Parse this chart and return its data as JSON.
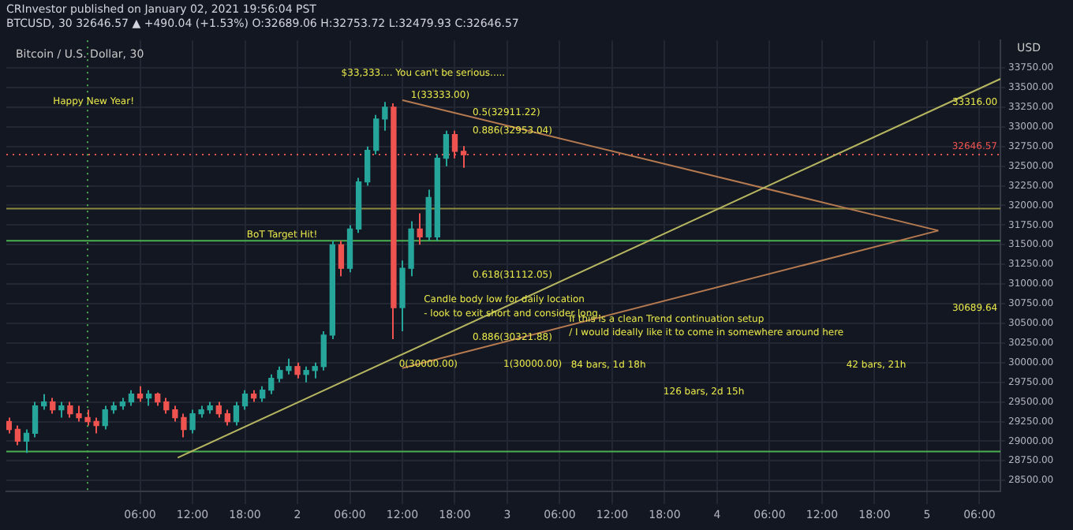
{
  "chart_data": {
    "type": "candlestick",
    "title": "Bitcoin / U.S. Dollar, 30",
    "subtitle": "CRInvestor published on January 02, 2021 19:56:04 PST",
    "annotations": [
      "BTCUSD, 30 32646.57 ▲ +490.04 (+1.53%) O:32689.06 H:32753.72 L:32479.93 C:32646.57",
      "Happy New Year!",
      "$33,333.... You can't be serious.....",
      "BoT Target Hit!",
      "1(33333.00)",
      "0.886(32953.04)",
      "0.5(32911.22)",
      "0.618(31112.05)",
      "Candle body low for daily location",
      "- look to exit short and consider long.",
      "0.886(30321.88)",
      "0(30000.00)",
      "1(30000.00)",
      "If this is a clean Trend continuation setup",
      "/ I would ideally like it to come in somewhere around here",
      "84 bars, 1d 18h",
      "126 bars, 2d 15h",
      "42 bars, 21h",
      "33316.00",
      "30689.64"
    ],
    "x": [
      "2020-12-31T15:00",
      "2020-12-31T16:00",
      "2020-12-31T17:00",
      "2020-12-31T18:00",
      "2020-12-31T19:00",
      "2020-12-31T20:00",
      "2020-12-31T21:00",
      "2020-12-31T22:00",
      "2020-12-31T23:00",
      "2021-01-01T00:00",
      "2021-01-01T01:00",
      "2021-01-01T02:00",
      "2021-01-01T03:00",
      "2021-01-01T04:00",
      "2021-01-01T05:00",
      "2021-01-01T06:00",
      "2021-01-01T07:00",
      "2021-01-01T08:00",
      "2021-01-01T09:00",
      "2021-01-01T10:00",
      "2021-01-01T11:00",
      "2021-01-01T12:00",
      "2021-01-01T13:00",
      "2021-01-01T14:00",
      "2021-01-01T15:00",
      "2021-01-01T16:00",
      "2021-01-01T17:00",
      "2021-01-01T18:00",
      "2021-01-01T19:00",
      "2021-01-01T20:00",
      "2021-01-01T21:00",
      "2021-01-01T22:00",
      "2021-01-01T23:00",
      "2021-01-02T00:00",
      "2021-01-02T01:00",
      "2021-01-02T02:00",
      "2021-01-02T03:00",
      "2021-01-02T04:00",
      "2021-01-02T05:00",
      "2021-01-02T06:00",
      "2021-01-02T07:00",
      "2021-01-02T08:00",
      "2021-01-02T09:00",
      "2021-01-02T10:00",
      "2021-01-02T11:00",
      "2021-01-02T12:00",
      "2021-01-02T13:00",
      "2021-01-02T14:00",
      "2021-01-02T15:00",
      "2021-01-02T16:00",
      "2021-01-02T17:00",
      "2021-01-02T18:00",
      "2021-01-02T19:00"
    ],
    "ohlc": [
      [
        29250,
        29300,
        29100,
        29150
      ],
      [
        29150,
        29200,
        28950,
        29000
      ],
      [
        29000,
        29150,
        28850,
        29100
      ],
      [
        29100,
        29500,
        29050,
        29450
      ],
      [
        29450,
        29600,
        29400,
        29500
      ],
      [
        29500,
        29550,
        29350,
        29400
      ],
      [
        29400,
        29500,
        29300,
        29450
      ],
      [
        29450,
        29500,
        29300,
        29350
      ],
      [
        29350,
        29450,
        29250,
        29300
      ],
      [
        29300,
        29400,
        29200,
        29250
      ],
      [
        29250,
        29300,
        29100,
        29200
      ],
      [
        29200,
        29450,
        29150,
        29400
      ],
      [
        29400,
        29500,
        29350,
        29450
      ],
      [
        29450,
        29550,
        29400,
        29500
      ],
      [
        29500,
        29650,
        29450,
        29600
      ],
      [
        29600,
        29700,
        29500,
        29550
      ],
      [
        29550,
        29650,
        29450,
        29600
      ],
      [
        29600,
        29620,
        29450,
        29500
      ],
      [
        29500,
        29550,
        29350,
        29400
      ],
      [
        29400,
        29450,
        29250,
        29300
      ],
      [
        29300,
        29350,
        29050,
        29150
      ],
      [
        29150,
        29400,
        29100,
        29350
      ],
      [
        29350,
        29450,
        29300,
        29400
      ],
      [
        29400,
        29500,
        29350,
        29450
      ],
      [
        29450,
        29500,
        29300,
        29350
      ],
      [
        29350,
        29400,
        29200,
        29250
      ],
      [
        29250,
        29500,
        29200,
        29450
      ],
      [
        29450,
        29650,
        29400,
        29600
      ],
      [
        29600,
        29650,
        29500,
        29550
      ],
      [
        29550,
        29700,
        29500,
        29650
      ],
      [
        29650,
        29850,
        29600,
        29800
      ],
      [
        29800,
        29950,
        29750,
        29900
      ],
      [
        29900,
        30050,
        29850,
        29950
      ],
      [
        29950,
        30000,
        29800,
        29850
      ],
      [
        29850,
        29950,
        29750,
        29900
      ],
      [
        29900,
        30000,
        29800,
        29950
      ],
      [
        29950,
        30400,
        29900,
        30350
      ],
      [
        30350,
        31550,
        30300,
        31500
      ],
      [
        31500,
        31550,
        31100,
        31200
      ],
      [
        31200,
        31750,
        31150,
        31700
      ],
      [
        31700,
        32350,
        31650,
        32300
      ],
      [
        32300,
        32750,
        32250,
        32700
      ],
      [
        32700,
        33150,
        32650,
        33100
      ],
      [
        33100,
        33316,
        32950,
        33250
      ],
      [
        33250,
        33300,
        30300,
        30700
      ],
      [
        30700,
        31300,
        30400,
        31200
      ],
      [
        31200,
        31800,
        31100,
        31700
      ],
      [
        31700,
        31900,
        31500,
        31600
      ],
      [
        31600,
        32200,
        31550,
        32100
      ],
      [
        31600,
        32650,
        31550,
        32600
      ],
      [
        32600,
        32950,
        32500,
        32900
      ],
      [
        32900,
        32950,
        32600,
        32689.06
      ],
      [
        32689.06,
        32753.72,
        32479.93,
        32646.57
      ]
    ],
    "series": [
      {
        "type": "line",
        "color": "#b5b560",
        "x": [
          "2021-01-01T10:18",
          "2021-01-05T08:24"
        ],
        "values": [
          28790,
          33610
        ]
      },
      {
        "type": "line",
        "color": "#b57a50",
        "x": [
          "2021-01-02T12:00",
          "2021-01-05T01:18"
        ],
        "values": [
          33340,
          31680
        ]
      },
      {
        "type": "line",
        "color": "#b57a50",
        "x": [
          "2021-01-02T12:00",
          "2021-01-05T01:18"
        ],
        "values": [
          29930,
          31680
        ]
      }
    ],
    "ref_lines": [
      {
        "axis": "y",
        "value": 31550,
        "color": "#4caf50",
        "line_style": "solid"
      },
      {
        "axis": "y",
        "value": 31960,
        "color": "#8a8a40",
        "line_style": "solid"
      },
      {
        "axis": "y",
        "value": 28870,
        "color": "#4caf50",
        "line_style": "solid"
      },
      {
        "axis": "y",
        "value": 32646.57,
        "label": "32646.57",
        "color": "#ef5350",
        "line_style": "dotted"
      },
      {
        "axis": "x",
        "value": "2021-01-01",
        "color": "#4caf50",
        "line_style": "dotted"
      }
    ],
    "xlim": [
      "2020-12-31T14:42",
      "2021-01-05T08:24"
    ],
    "xticks": [
      {
        "value": "2021-01-01T06:00",
        "label": "06:00"
      },
      {
        "value": "2021-01-01T12:00",
        "label": "12:00"
      },
      {
        "value": "2021-01-01T18:00",
        "label": "18:00"
      },
      {
        "value": "2021-01-02",
        "label": "2"
      },
      {
        "value": "2021-01-02T06:00",
        "label": "06:00"
      },
      {
        "value": "2021-01-02T12:00",
        "label": "12:00"
      },
      {
        "value": "2021-01-02T18:00",
        "label": "18:00"
      },
      {
        "value": "2021-01-03",
        "label": "3"
      },
      {
        "value": "2021-01-03T06:00",
        "label": "06:00"
      },
      {
        "value": "2021-01-03T12:00",
        "label": "12:00"
      },
      {
        "value": "2021-01-03T18:00",
        "label": "18:00"
      },
      {
        "value": "2021-01-04",
        "label": "4"
      },
      {
        "value": "2021-01-04T06:00",
        "label": "06:00"
      },
      {
        "value": "2021-01-04T12:00",
        "label": "12:00"
      },
      {
        "value": "2021-01-04T18:00",
        "label": "18:00"
      },
      {
        "value": "2021-01-05",
        "label": "5"
      },
      {
        "value": "2021-01-05T06:00",
        "label": "06:00"
      }
    ],
    "ylim": [
      28360,
      34100
    ],
    "yticks": [
      {
        "value": 28500,
        "label": "28500.00"
      },
      {
        "value": 28750,
        "label": "28750.00"
      },
      {
        "value": 29000,
        "label": "29000.00"
      },
      {
        "value": 29250,
        "label": "29250.00"
      },
      {
        "value": 29500,
        "label": "29500.00"
      },
      {
        "value": 29750,
        "label": "29750.00"
      },
      {
        "value": 30000,
        "label": "30000.00"
      },
      {
        "value": 30250,
        "label": "30250.00"
      },
      {
        "value": 30500,
        "label": "30500.00"
      },
      {
        "value": 30750,
        "label": "30750.00"
      },
      {
        "value": 31000,
        "label": "31000.00"
      },
      {
        "value": 31250,
        "label": "31250.00"
      },
      {
        "value": 31500,
        "label": "31500.00"
      },
      {
        "value": 31750,
        "label": "31750.00"
      },
      {
        "value": 32000,
        "label": "32000.00"
      },
      {
        "value": 32250,
        "label": "32250.00"
      },
      {
        "value": 32500,
        "label": "32500.00"
      },
      {
        "value": 32750,
        "label": "32750.00"
      },
      {
        "value": 33000,
        "label": "33000.00"
      },
      {
        "value": 33250,
        "label": "33250.00"
      },
      {
        "value": 33500,
        "label": "33500.00"
      },
      {
        "value": 33750,
        "label": "33750.00"
      }
    ],
    "ylabel": "USD",
    "grid": true,
    "legend": false
  }
}
